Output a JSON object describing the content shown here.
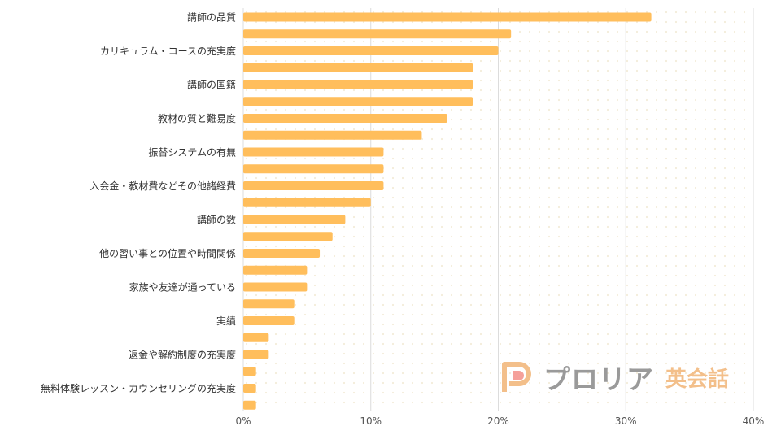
{
  "chart_data": {
    "type": "bar",
    "orientation": "horizontal",
    "categories": [
      "講師の品質",
      "",
      "カリキュラム・コースの充実度",
      "",
      "講師の国籍",
      "",
      "教材の質と難易度",
      "",
      "振替システムの有無",
      "",
      "入会金・教材費などその他諸経費",
      "",
      "講師の数",
      "",
      "他の習い事との位置や時間関係",
      "",
      "家族や友達が通っている",
      "",
      "実績",
      "",
      "返金や解約制度の充実度",
      "",
      "無料体験レッスン・カウンセリングの充実度",
      ""
    ],
    "values": [
      32,
      21,
      20,
      18,
      18,
      18,
      16,
      14,
      11,
      11,
      11,
      10,
      8,
      7,
      6,
      5,
      5,
      4,
      4,
      2,
      2,
      1,
      1,
      1
    ],
    "xlim": [
      0,
      40
    ],
    "xticks": [
      "0%",
      "10%",
      "20%",
      "30%",
      "40%"
    ],
    "xtick_values": [
      0,
      10,
      20,
      30,
      40
    ],
    "grid": "vertical",
    "bar_color": "#ffbe5c",
    "grid_color": "#dcdcdc"
  },
  "watermark": {
    "brand": "プロリア",
    "sub": "英会話",
    "logo_icon": "p-logo-icon",
    "brand_color": "#9a9a9a",
    "accent_color": "#f3bf8a"
  }
}
